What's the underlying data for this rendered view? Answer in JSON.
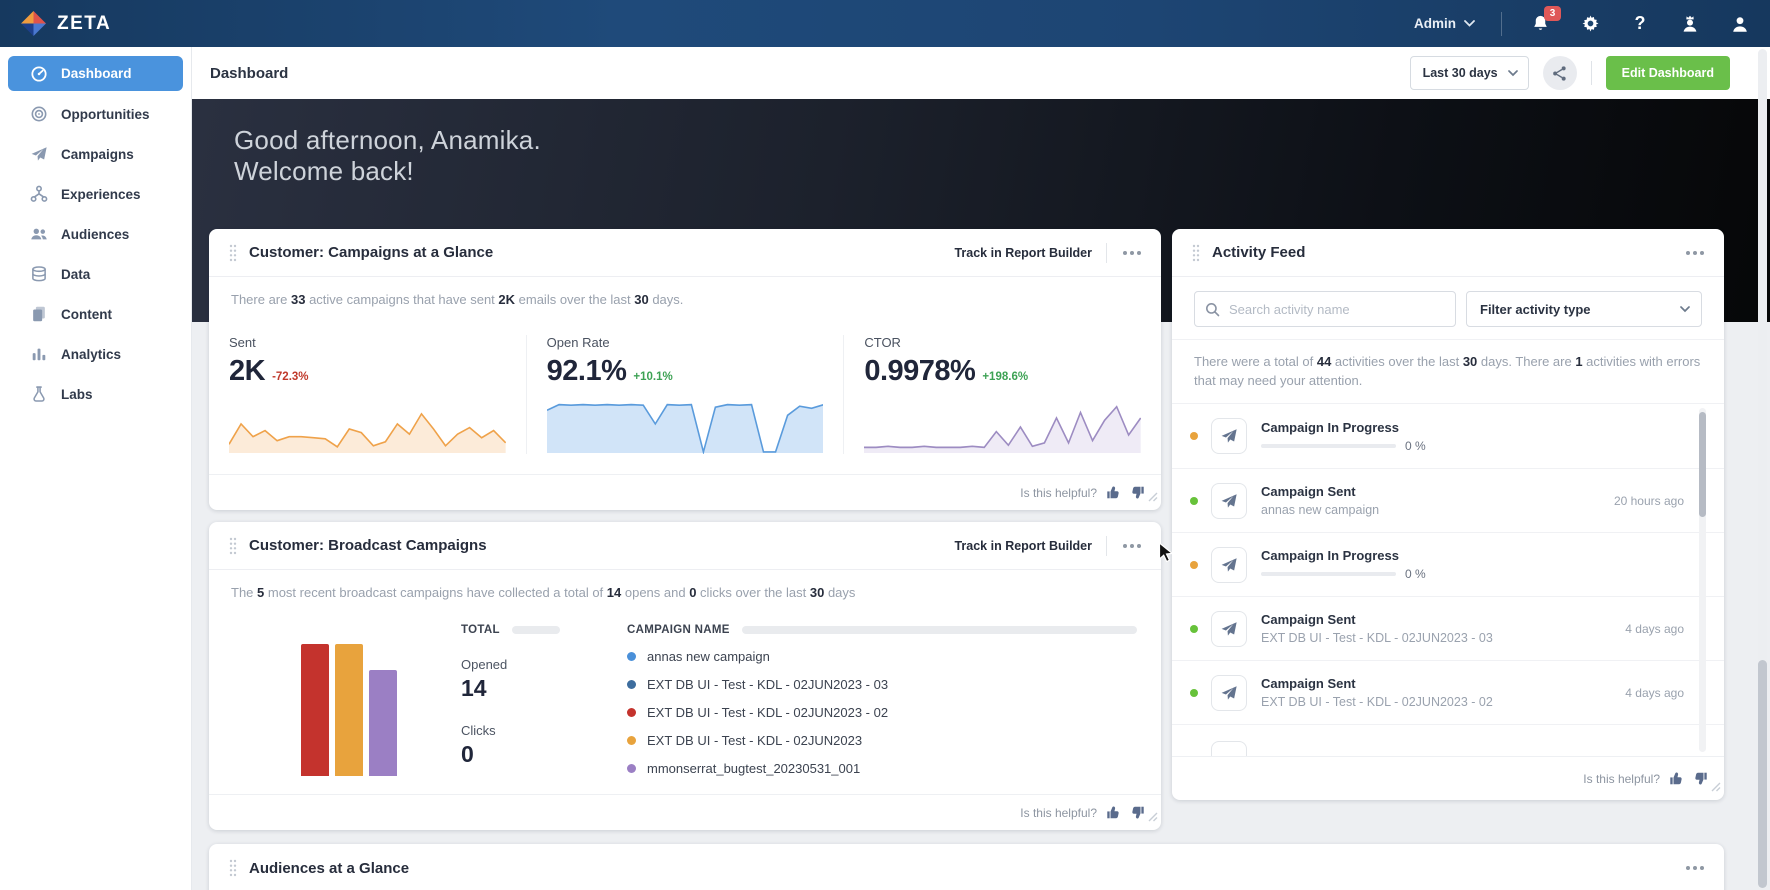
{
  "topbar": {
    "brand": "ZETA",
    "admin_label": "Admin",
    "notification_count": "3"
  },
  "sidebar": {
    "items": [
      {
        "label": "Dashboard",
        "icon": "gauge-icon",
        "active": true
      },
      {
        "label": "Opportunities",
        "icon": "target-icon"
      },
      {
        "label": "Campaigns",
        "icon": "paper-plane-icon"
      },
      {
        "label": "Experiences",
        "icon": "flow-icon"
      },
      {
        "label": "Audiences",
        "icon": "people-icon"
      },
      {
        "label": "Data",
        "icon": "database-icon"
      },
      {
        "label": "Content",
        "icon": "pages-icon"
      },
      {
        "label": "Analytics",
        "icon": "bar-chart-icon"
      },
      {
        "label": "Labs",
        "icon": "flask-icon"
      }
    ]
  },
  "header": {
    "title": "Dashboard",
    "date_range": "Last 30 days",
    "edit_button": "Edit Dashboard"
  },
  "hero": {
    "line1": "Good afternoon, Anamika.",
    "line2": "Welcome back!"
  },
  "helpful_label": "Is this helpful?",
  "cards": {
    "campaigns_glance": {
      "title": "Customer: Campaigns at a Glance",
      "action": "Track in Report Builder",
      "summary": [
        {
          "t": "There are "
        },
        {
          "t": "33",
          "b": true
        },
        {
          "t": " active campaigns that have sent "
        },
        {
          "t": "2K",
          "b": true
        },
        {
          "t": " emails over the last "
        },
        {
          "t": "30",
          "b": true
        },
        {
          "t": " days."
        }
      ],
      "metrics": [
        {
          "label": "Sent",
          "value": "2K",
          "delta": "-72.3%",
          "direction": "down"
        },
        {
          "label": "Open Rate",
          "value": "92.1%",
          "delta": "+10.1%",
          "direction": "up"
        },
        {
          "label": "CTOR",
          "value": "0.9978%",
          "delta": "+198.6%",
          "direction": "up"
        }
      ]
    },
    "broadcast": {
      "title": "Customer: Broadcast Campaigns",
      "action": "Track in Report Builder",
      "summary": [
        {
          "t": "The "
        },
        {
          "t": "5",
          "b": true
        },
        {
          "t": " most recent broadcast campaigns have collected a total of "
        },
        {
          "t": "14",
          "b": true
        },
        {
          "t": " opens and "
        },
        {
          "t": "0",
          "b": true
        },
        {
          "t": " clicks over the last "
        },
        {
          "t": "30",
          "b": true
        },
        {
          "t": " days"
        }
      ],
      "columns": {
        "total": "TOTAL",
        "campaign": "CAMPAIGN NAME"
      },
      "totals": {
        "opened_label": "Opened",
        "opened_value": "14",
        "clicks_label": "Clicks",
        "clicks_value": "0"
      }
    },
    "audiences": {
      "title": "Audiences at a Glance"
    }
  },
  "activity": {
    "title": "Activity Feed",
    "search_placeholder": "Search activity name",
    "filter_label": "Filter activity type",
    "summary": [
      {
        "t": "There were a total of "
      },
      {
        "t": "44",
        "b": true
      },
      {
        "t": " activities over the last "
      },
      {
        "t": "30",
        "b": true
      },
      {
        "t": " days. There are "
      },
      {
        "t": "1",
        "b": true
      },
      {
        "t": " activities with errors that may need your attention."
      }
    ],
    "items": [
      {
        "title": "Campaign In Progress",
        "progress": "0 %",
        "dot": "orange"
      },
      {
        "title": "Campaign Sent",
        "subtitle": "annas new campaign",
        "time": "20 hours ago",
        "dot": "green"
      },
      {
        "title": "Campaign In Progress",
        "progress": "0 %",
        "dot": "orange"
      },
      {
        "title": "Campaign Sent",
        "subtitle": "EXT DB UI - Test - KDL - 02JUN2023 - 03",
        "time": "4 days ago",
        "dot": "green"
      },
      {
        "title": "Campaign Sent",
        "subtitle": "EXT DB UI - Test - KDL - 02JUN2023 - 02",
        "time": "4 days ago",
        "dot": "green"
      }
    ]
  },
  "chart_data": [
    {
      "type": "line",
      "series_name": "Sent sparkline",
      "ymax": 100,
      "color": "#efa24a",
      "fill": "#fbe8d2",
      "values": [
        15,
        55,
        30,
        42,
        22,
        30,
        30,
        28,
        26,
        10,
        45,
        38,
        12,
        20,
        55,
        35,
        75,
        45,
        12,
        35,
        48,
        28,
        42,
        18
      ]
    },
    {
      "type": "area",
      "series_name": "Open Rate sparkline",
      "ymax": 100,
      "color": "#5a9bdc",
      "fill": "#c9dff7",
      "values": [
        82,
        93,
        92,
        93,
        92,
        93,
        92,
        93,
        92,
        55,
        93,
        92,
        93,
        0,
        88,
        93,
        92,
        93,
        0,
        0,
        72,
        90,
        86,
        93
      ]
    },
    {
      "type": "line",
      "series_name": "CTOR sparkline",
      "ymax": 45,
      "color": "#9d8cc2",
      "fill": "#ece7f5",
      "values": [
        4,
        4,
        5,
        4,
        4,
        5,
        4,
        4,
        4,
        5,
        4,
        18,
        6,
        22,
        5,
        8,
        30,
        8,
        35,
        10,
        28,
        40,
        15,
        30
      ]
    },
    {
      "type": "bar",
      "series_name": "Opens by broadcast campaign",
      "ylim": [
        0,
        5
      ],
      "categories": [
        "annas new campaign",
        "EXT DB UI - Test - KDL - 02JUN2023 - 03",
        "EXT DB UI - Test - KDL - 02JUN2023 - 02",
        "EXT DB UI - Test - KDL - 02JUN2023",
        "mmonserrat_bugtest_20230531_001"
      ],
      "values": [
        0,
        0,
        5,
        5,
        4
      ],
      "colors": [
        "#4a90d9",
        "#3d6d9e",
        "#c4332d",
        "#e8a33d",
        "#9b7fc4"
      ],
      "legend_position": "right"
    }
  ],
  "colors": {
    "topbar_blue": "#1d456f",
    "sidebar_active_blue": "#4a93dd",
    "edit_button_green": "#6abf4a",
    "notification_badge_red": "#df5858",
    "negative_delta_red": "#c0392b",
    "positive_delta_green": "#3da254",
    "status_orange": "#e8a33d",
    "status_green": "#67c23a"
  }
}
